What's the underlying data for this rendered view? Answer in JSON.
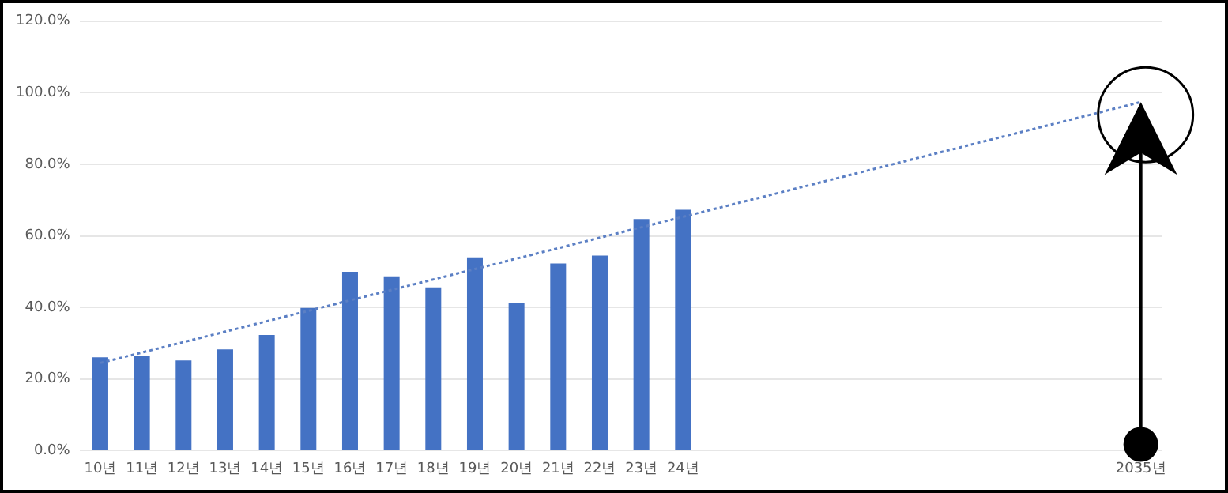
{
  "chart_data": {
    "type": "bar",
    "categories": [
      "10년",
      "11년",
      "12년",
      "13년",
      "14년",
      "15년",
      "16년",
      "17년",
      "18년",
      "19년",
      "20년",
      "21년",
      "22년",
      "23년",
      "24년",
      null,
      null,
      null,
      null,
      null,
      null,
      null,
      null,
      null,
      null,
      "2035년"
    ],
    "series": [
      {
        "color": "#4472c4",
        "values": [
          26.1,
          26.6,
          25.2,
          28.3,
          32.3,
          39.9,
          50.0,
          48.7,
          45.6,
          54.0,
          41.2,
          52.3,
          54.5,
          64.7,
          67.3,
          null,
          null,
          null,
          null,
          null,
          null,
          null,
          null,
          null,
          null,
          null
        ]
      },
      {
        "type": "line",
        "color": "#5b7fc4",
        "line_style": "dotted",
        "values": [
          24.5,
          null,
          null,
          null,
          null,
          null,
          null,
          null,
          null,
          null,
          null,
          null,
          null,
          null,
          null,
          null,
          null,
          null,
          null,
          null,
          null,
          null,
          null,
          null,
          null,
          97.4
        ]
      }
    ],
    "ylim": [
      0,
      120
    ],
    "yticks": [
      {
        "value": 0,
        "label": "0.0%"
      },
      {
        "value": 20,
        "label": "20.0%"
      },
      {
        "value": 40,
        "label": "40.0%"
      },
      {
        "value": 60,
        "label": "60.0%"
      },
      {
        "value": 80,
        "label": "80.0%"
      },
      {
        "value": 100,
        "label": "100.0%"
      },
      {
        "value": 120,
        "label": "120.0%"
      }
    ],
    "grid": "y",
    "marker": "none"
  }
}
